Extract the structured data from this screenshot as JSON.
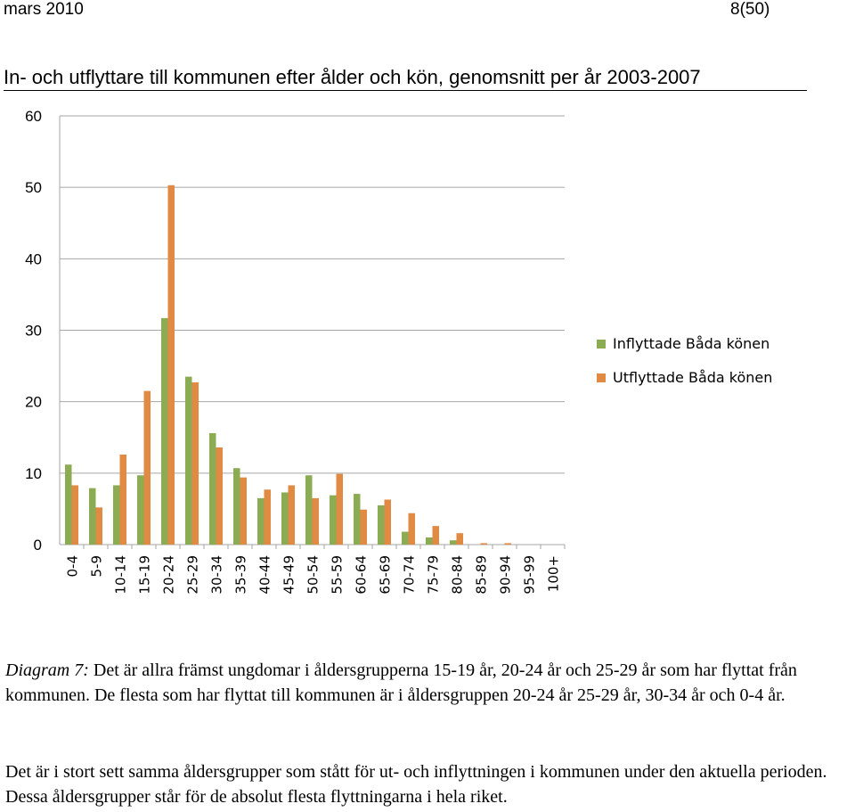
{
  "header": {
    "date": "mars 2010",
    "page": "8(50)"
  },
  "document_title": "In- och utflyttare till kommunen efter ålder och kön, genomsnitt per år 2003-2007",
  "caption": {
    "label": "Diagram 7:",
    "text": " Det är allra främst ungdomar i åldersgrupperna 15-19 år, 20-24 år och 25-29 år som har flyttat från kommunen. De flesta som har flyttat till kommunen är i åldersgruppen 20-24 år 25-29 år, 30-34 år och 0-4 år."
  },
  "paragraph": "Det är i stort sett samma åldersgrupper som stått för ut- och inflyttningen i kommunen under den aktuella perioden. Dessa åldersgrupper står för de absolut flesta flyttningarna i hela riket.",
  "colors": {
    "inflyttade": "#8cac53",
    "utflyttade": "#e08a44",
    "grid": "#a6a6a6"
  },
  "chart_data": {
    "type": "bar",
    "title": "",
    "xlabel": "",
    "ylabel": "",
    "ylim": [
      0,
      60
    ],
    "yticks": [
      0,
      10,
      20,
      30,
      40,
      50,
      60
    ],
    "grid": true,
    "legend_position": "right",
    "categories": [
      "0-4",
      "5-9",
      "10-14",
      "15-19",
      "20-24",
      "25-29",
      "30-34",
      "35-39",
      "40-44",
      "45-49",
      "50-54",
      "55-59",
      "60-64",
      "65-69",
      "70-74",
      "75-79",
      "80-84",
      "85-89",
      "90-94",
      "95-99",
      "100+"
    ],
    "series": [
      {
        "name": "Inflyttade Båda könen",
        "color": "#8cac53",
        "values": [
          11.2,
          7.9,
          8.3,
          9.7,
          31.7,
          23.5,
          15.6,
          10.7,
          6.5,
          7.3,
          9.7,
          6.9,
          7.1,
          5.5,
          1.8,
          1.0,
          0.6,
          0.0,
          0.0,
          0.0,
          0.0
        ]
      },
      {
        "name": "Utflyttade Båda könen",
        "color": "#e08a44",
        "values": [
          8.3,
          5.2,
          12.6,
          21.5,
          50.3,
          22.7,
          13.6,
          9.4,
          7.7,
          8.3,
          6.5,
          9.9,
          4.9,
          6.3,
          4.4,
          2.6,
          1.6,
          0.2,
          0.2,
          0.0,
          0.0
        ]
      }
    ]
  }
}
